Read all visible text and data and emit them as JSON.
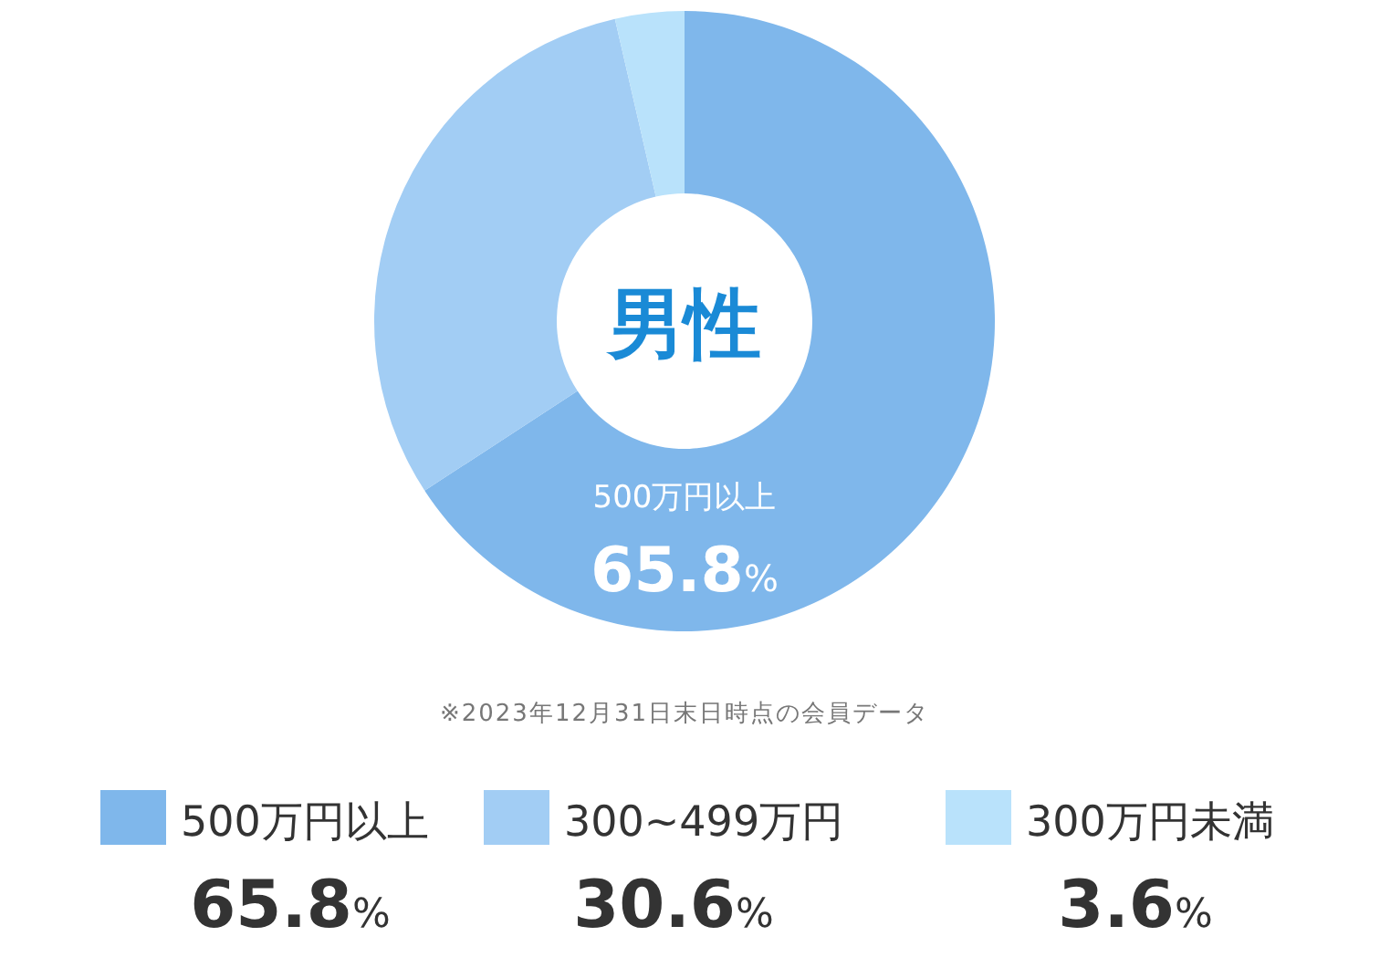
{
  "chart_data": {
    "type": "donut",
    "title": "男性",
    "categories": [
      "500万円以上",
      "300~499万円",
      "300万円未満"
    ],
    "values": [
      65.8,
      30.6,
      3.6
    ],
    "colors": [
      "#7fb7eb",
      "#a2cdf4",
      "#b9e2fb"
    ],
    "value_labels": [
      "65.8%",
      "30.6%",
      "3.6%"
    ],
    "legend": "bottom",
    "annotations": [
      "※2023年12月31日末日時点の会員データ"
    ]
  }
}
